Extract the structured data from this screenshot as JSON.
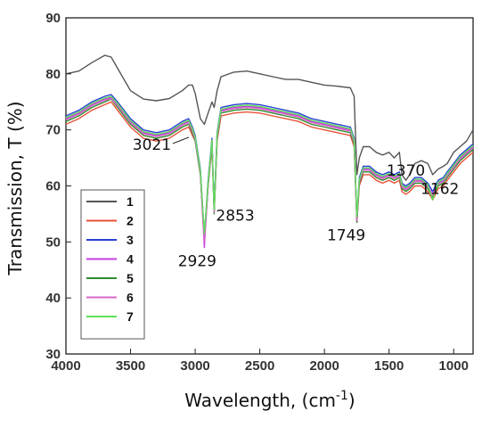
{
  "chart_data": {
    "type": "line",
    "xlabel": "Wavelength, (cm",
    "xlabel_sup": "-1",
    "xlabel_end": ")",
    "ylabel": "Transmission, T (%)",
    "xlim": [
      4000,
      850
    ],
    "ylim": [
      30,
      90
    ],
    "x_ticks": [
      "4000",
      "3500",
      "3000",
      "2500",
      "2000",
      "1500",
      "1000"
    ],
    "y_ticks": [
      "30",
      "40",
      "50",
      "60",
      "70",
      "80",
      "90"
    ],
    "legend_placement": "lower-left",
    "grid": false,
    "annotations": [
      {
        "text": "3021",
        "x": 3021,
        "y": 69
      },
      {
        "text": "2929",
        "x": 2929,
        "y": 49.5
      },
      {
        "text": "2853",
        "x": 2853,
        "y": 56
      },
      {
        "text": "1749",
        "x": 1749,
        "y": 53.5
      },
      {
        "text": "1370",
        "x": 1370,
        "y": 59
      },
      {
        "text": "1162",
        "x": 1162,
        "y": 57
      }
    ],
    "x": [
      4000,
      3900,
      3800,
      3700,
      3650,
      3600,
      3500,
      3400,
      3300,
      3200,
      3100,
      3050,
      3021,
      3000,
      2960,
      2929,
      2900,
      2870,
      2853,
      2830,
      2800,
      2700,
      2600,
      2500,
      2400,
      2300,
      2200,
      2100,
      2000,
      1900,
      1800,
      1770,
      1749,
      1730,
      1700,
      1650,
      1600,
      1550,
      1500,
      1460,
      1420,
      1400,
      1370,
      1340,
      1300,
      1250,
      1200,
      1162,
      1120,
      1080,
      1050,
      1000,
      950,
      900,
      850
    ],
    "series": [
      {
        "name": "1",
        "color": "#555555",
        "values": [
          80,
          80.5,
          82,
          83.3,
          83,
          81,
          77,
          75.5,
          75.2,
          75.6,
          77,
          78,
          78,
          76.5,
          72,
          71,
          73,
          75,
          74,
          77,
          79.5,
          80.3,
          80.5,
          80,
          79.5,
          79,
          79,
          78.5,
          78,
          77.8,
          77.5,
          76,
          62,
          65,
          67,
          67,
          66,
          65.5,
          66,
          65,
          66,
          62,
          61,
          62,
          64,
          64.5,
          64,
          62,
          63,
          63.5,
          64,
          66,
          67,
          68,
          70
        ]
      },
      {
        "name": "2",
        "color": "#e8513a",
        "values": [
          71,
          72,
          73.5,
          74.5,
          75,
          73.5,
          70.5,
          68.5,
          68,
          68.5,
          70,
          70.5,
          69,
          68,
          62,
          50,
          60,
          67,
          55.5,
          68,
          72.5,
          73,
          73.2,
          73,
          72.5,
          72,
          71.5,
          70.5,
          70,
          69.5,
          69,
          67,
          53.5,
          60,
          62,
          62,
          61,
          60.5,
          61,
          60.5,
          61,
          59,
          58.5,
          59,
          60,
          60,
          59,
          57.5,
          59.5,
          60,
          61,
          62.5,
          64,
          65,
          66
        ]
      },
      {
        "name": "3",
        "color": "#2a3fd4",
        "values": [
          72.5,
          73.5,
          75,
          76,
          76.3,
          75,
          72,
          70,
          69.5,
          70,
          71.5,
          72,
          70.5,
          69,
          63,
          51,
          61,
          68.5,
          56,
          69.5,
          74,
          74.5,
          74.7,
          74.5,
          74,
          73.5,
          73,
          72,
          71.5,
          71,
          70.5,
          68.5,
          54,
          61.5,
          63.5,
          63.5,
          62.5,
          62,
          62.5,
          62,
          62.5,
          60.5,
          60,
          60.5,
          61.5,
          61.5,
          60.5,
          59,
          61,
          61.5,
          62.5,
          64,
          65.5,
          66.5,
          67.5
        ]
      },
      {
        "name": "4",
        "color": "#c33fe0",
        "values": [
          72,
          73,
          74.5,
          75.5,
          75.8,
          74.5,
          71.5,
          69.5,
          69,
          69.5,
          71,
          71.5,
          70,
          68.5,
          62.5,
          49,
          60.5,
          68,
          55.5,
          69,
          73.5,
          74,
          74.2,
          74,
          73.5,
          73,
          72.5,
          71.5,
          71,
          70.5,
          70,
          68,
          53.5,
          61,
          63,
          63,
          62,
          61.5,
          62,
          61.5,
          62,
          60,
          59.5,
          60,
          61,
          61,
          60,
          58.5,
          60.5,
          61,
          62,
          63.5,
          65,
          66,
          67
        ]
      },
      {
        "name": "5",
        "color": "#2e8b2e",
        "values": [
          71.5,
          72.5,
          74,
          75,
          75.5,
          74,
          71,
          69,
          68.5,
          69,
          70.5,
          71,
          69.5,
          68,
          62,
          50.5,
          60,
          67.5,
          55,
          68.5,
          73,
          73.5,
          73.7,
          73.5,
          73,
          72.5,
          72,
          71,
          70.5,
          70,
          69.5,
          67.5,
          53.5,
          60.5,
          62.5,
          62.5,
          61.5,
          61,
          61.5,
          61,
          61.5,
          59.5,
          59,
          59.5,
          60.5,
          60.5,
          59.5,
          58,
          60,
          60.5,
          61.5,
          63,
          64.5,
          65.5,
          66.5
        ]
      },
      {
        "name": "6",
        "color": "#d868c8",
        "values": [
          71.8,
          72.8,
          74.3,
          75.3,
          75.6,
          74.3,
          71.3,
          69.3,
          68.8,
          69.3,
          70.8,
          71.3,
          69.8,
          68.3,
          62.3,
          50,
          60.3,
          67.8,
          55.3,
          68.8,
          73.3,
          73.8,
          74,
          73.8,
          73.3,
          72.8,
          72.3,
          71.3,
          70.8,
          70.3,
          69.8,
          67.8,
          53.8,
          60.8,
          62.8,
          62.8,
          61.8,
          61.3,
          61.8,
          61.3,
          61.8,
          59.8,
          59.3,
          59.8,
          60.8,
          60.8,
          59.8,
          58.3,
          60.3,
          60.8,
          61.8,
          63.3,
          64.8,
          65.8,
          66.8
        ]
      },
      {
        "name": "7",
        "color": "#5ee05a",
        "values": [
          72.2,
          73.2,
          74.7,
          75.7,
          76,
          74.7,
          71.7,
          69.7,
          69.2,
          69.7,
          71.2,
          71.7,
          70.2,
          68.7,
          62.7,
          51.5,
          60.7,
          68.2,
          55.7,
          69.2,
          73.7,
          74.2,
          74.4,
          74.2,
          73.7,
          73.2,
          72.7,
          71.7,
          71.2,
          70.7,
          70.2,
          68.2,
          54.5,
          61.2,
          63.2,
          63.2,
          62.2,
          61.7,
          62.2,
          61.7,
          62.2,
          60.2,
          59.7,
          60.2,
          61.2,
          61.2,
          60.2,
          57.5,
          60.7,
          61.2,
          62.2,
          63.7,
          65.2,
          66.2,
          67.2
        ]
      }
    ]
  }
}
